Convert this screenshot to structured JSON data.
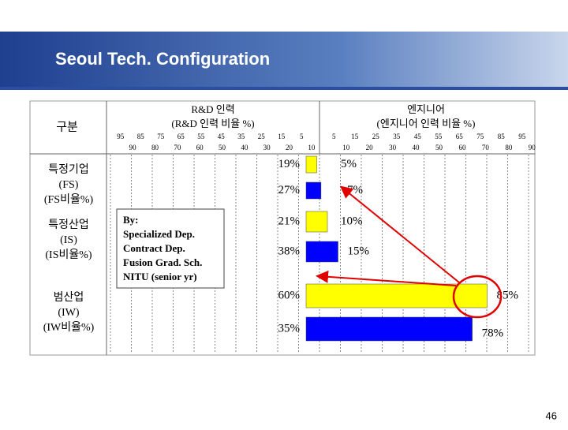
{
  "header": {
    "title": "Seoul Tech. Configuration"
  },
  "table": {
    "corner": "구분",
    "rnd_header": {
      "title": "R&D 인력",
      "subtitle": "(R&D 인력 비율 %)"
    },
    "eng_header": {
      "title": "엔지니어",
      "subtitle": "(엔지니어 인력 비율 %)"
    },
    "rnd_ticks_top": [
      95,
      85,
      75,
      65,
      55,
      45,
      35,
      25,
      15,
      5
    ],
    "rnd_ticks_bottom": [
      90,
      80,
      70,
      60,
      50,
      40,
      30,
      20,
      10
    ],
    "eng_ticks_top": [
      5,
      15,
      25,
      35,
      45,
      55,
      65,
      75,
      85,
      95
    ],
    "eng_ticks_bottom": [
      10,
      20,
      30,
      40,
      50,
      60,
      70,
      80,
      90
    ],
    "bar_colors": [
      "#ffff00",
      "#0000ff"
    ],
    "rows": [
      {
        "label": [
          "특정기업",
          "(FS)",
          "(FS비율%)"
        ],
        "rnd": [
          "19%",
          "27%"
        ],
        "eng_values": [
          5,
          7
        ],
        "eng_labels": [
          "5%",
          "7%"
        ]
      },
      {
        "label": [
          "특정산업",
          "(IS)",
          "(IS비율%)"
        ],
        "rnd": [
          "21%",
          "38%"
        ],
        "eng_values": [
          10,
          15
        ],
        "eng_labels": [
          "10%",
          "15%"
        ]
      },
      {
        "label": [
          "범산업",
          "(IW)",
          "(IW비율%)"
        ],
        "rnd": [
          "60%",
          "35%"
        ],
        "eng_values": [
          85,
          78
        ],
        "eng_labels": [
          "85%",
          "78%"
        ]
      }
    ]
  },
  "note": {
    "lines": [
      "By:",
      "Specialized Dep.",
      "Contract Dep.",
      "Fusion Grad. Sch.",
      "NITU (senior yr)"
    ]
  },
  "page_number": "46"
}
